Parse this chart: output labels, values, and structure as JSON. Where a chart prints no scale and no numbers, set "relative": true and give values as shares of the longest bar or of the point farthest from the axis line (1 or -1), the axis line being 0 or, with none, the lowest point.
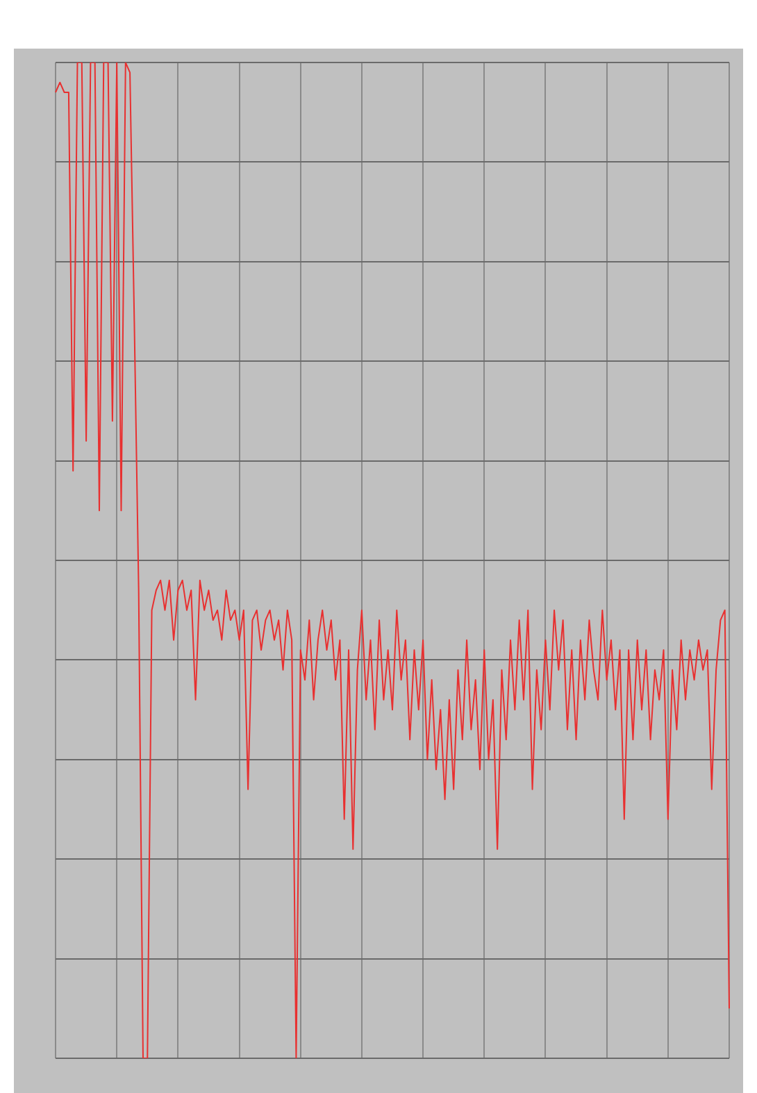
{
  "chart_data": {
    "type": "line",
    "relative": true,
    "grid": true,
    "marker": "none",
    "line_style": "solid",
    "categories": [
      null,
      null,
      null,
      null,
      null,
      null,
      null,
      null,
      null,
      null,
      null,
      null,
      null,
      null,
      null,
      null,
      null,
      null,
      null,
      null,
      null,
      null,
      null,
      null,
      null,
      null,
      null,
      null,
      null,
      null,
      null,
      null,
      null,
      null,
      null,
      null,
      null,
      null,
      null,
      null,
      null,
      null,
      null,
      null,
      null,
      null,
      null,
      null,
      null,
      null,
      null,
      null,
      null,
      null,
      null,
      null,
      null,
      null,
      null,
      null,
      null,
      null,
      null,
      null,
      null,
      null,
      null,
      null,
      null,
      null,
      null,
      null,
      null,
      null,
      null,
      null,
      null,
      null,
      null,
      null,
      null,
      null,
      null,
      null,
      null,
      null,
      null,
      null,
      null,
      null,
      null,
      null,
      null,
      null,
      null,
      null,
      null,
      null,
      null,
      null,
      null,
      null,
      null,
      null,
      null,
      null,
      null,
      null,
      null,
      null,
      null,
      null,
      null,
      null,
      null,
      null,
      null,
      null,
      null,
      null,
      null,
      null,
      null,
      null,
      null,
      null,
      null,
      null,
      null,
      null,
      null,
      null,
      null,
      null,
      null,
      null,
      null,
      null,
      null,
      null,
      null,
      null,
      null,
      null,
      null,
      null,
      null,
      null,
      null,
      null,
      null,
      null,
      null,
      null,
      null
    ],
    "series": [
      {
        "color": "#e83030",
        "values": [
          0.97,
          0.98,
          0.97,
          0.97,
          0.59,
          1,
          1,
          0.62,
          1,
          1,
          0.55,
          1,
          1,
          0.64,
          1,
          0.55,
          1,
          0.99,
          0.74,
          0.47,
          0,
          0,
          0.45,
          0.47,
          0.48,
          0.45,
          0.48,
          0.42,
          0.47,
          0.48,
          0.45,
          0.47,
          0.36,
          0.48,
          0.45,
          0.47,
          0.44,
          0.45,
          0.42,
          0.47,
          0.44,
          0.45,
          0.42,
          0.45,
          0.27,
          0.44,
          0.45,
          0.41,
          0.44,
          0.45,
          0.42,
          0.44,
          0.39,
          0.45,
          0.42,
          0,
          0.41,
          0.38,
          0.44,
          0.36,
          0.42,
          0.45,
          0.41,
          0.44,
          0.38,
          0.42,
          0.24,
          0.41,
          0.21,
          0.39,
          0.45,
          0.36,
          0.42,
          0.33,
          0.44,
          0.36,
          0.41,
          0.35,
          0.45,
          0.38,
          0.42,
          0.32,
          0.41,
          0.35,
          0.42,
          0.3,
          0.38,
          0.29,
          0.35,
          0.26,
          0.36,
          0.27,
          0.39,
          0.32,
          0.42,
          0.33,
          0.38,
          0.29,
          0.41,
          0.3,
          0.36,
          0.21,
          0.39,
          0.32,
          0.42,
          0.35,
          0.44,
          0.36,
          0.45,
          0.27,
          0.39,
          0.33,
          0.42,
          0.35,
          0.45,
          0.39,
          0.44,
          0.33,
          0.41,
          0.32,
          0.42,
          0.36,
          0.44,
          0.39,
          0.36,
          0.45,
          0.38,
          0.42,
          0.35,
          0.41,
          0.24,
          0.41,
          0.32,
          0.42,
          0.35,
          0.41,
          0.32,
          0.39,
          0.36,
          0.41,
          0.24,
          0.39,
          0.33,
          0.42,
          0.36,
          0.41,
          0.38,
          0.42,
          0.39,
          0.41,
          0.27,
          0.39,
          0.44,
          0.45,
          0.05
        ]
      }
    ]
  }
}
